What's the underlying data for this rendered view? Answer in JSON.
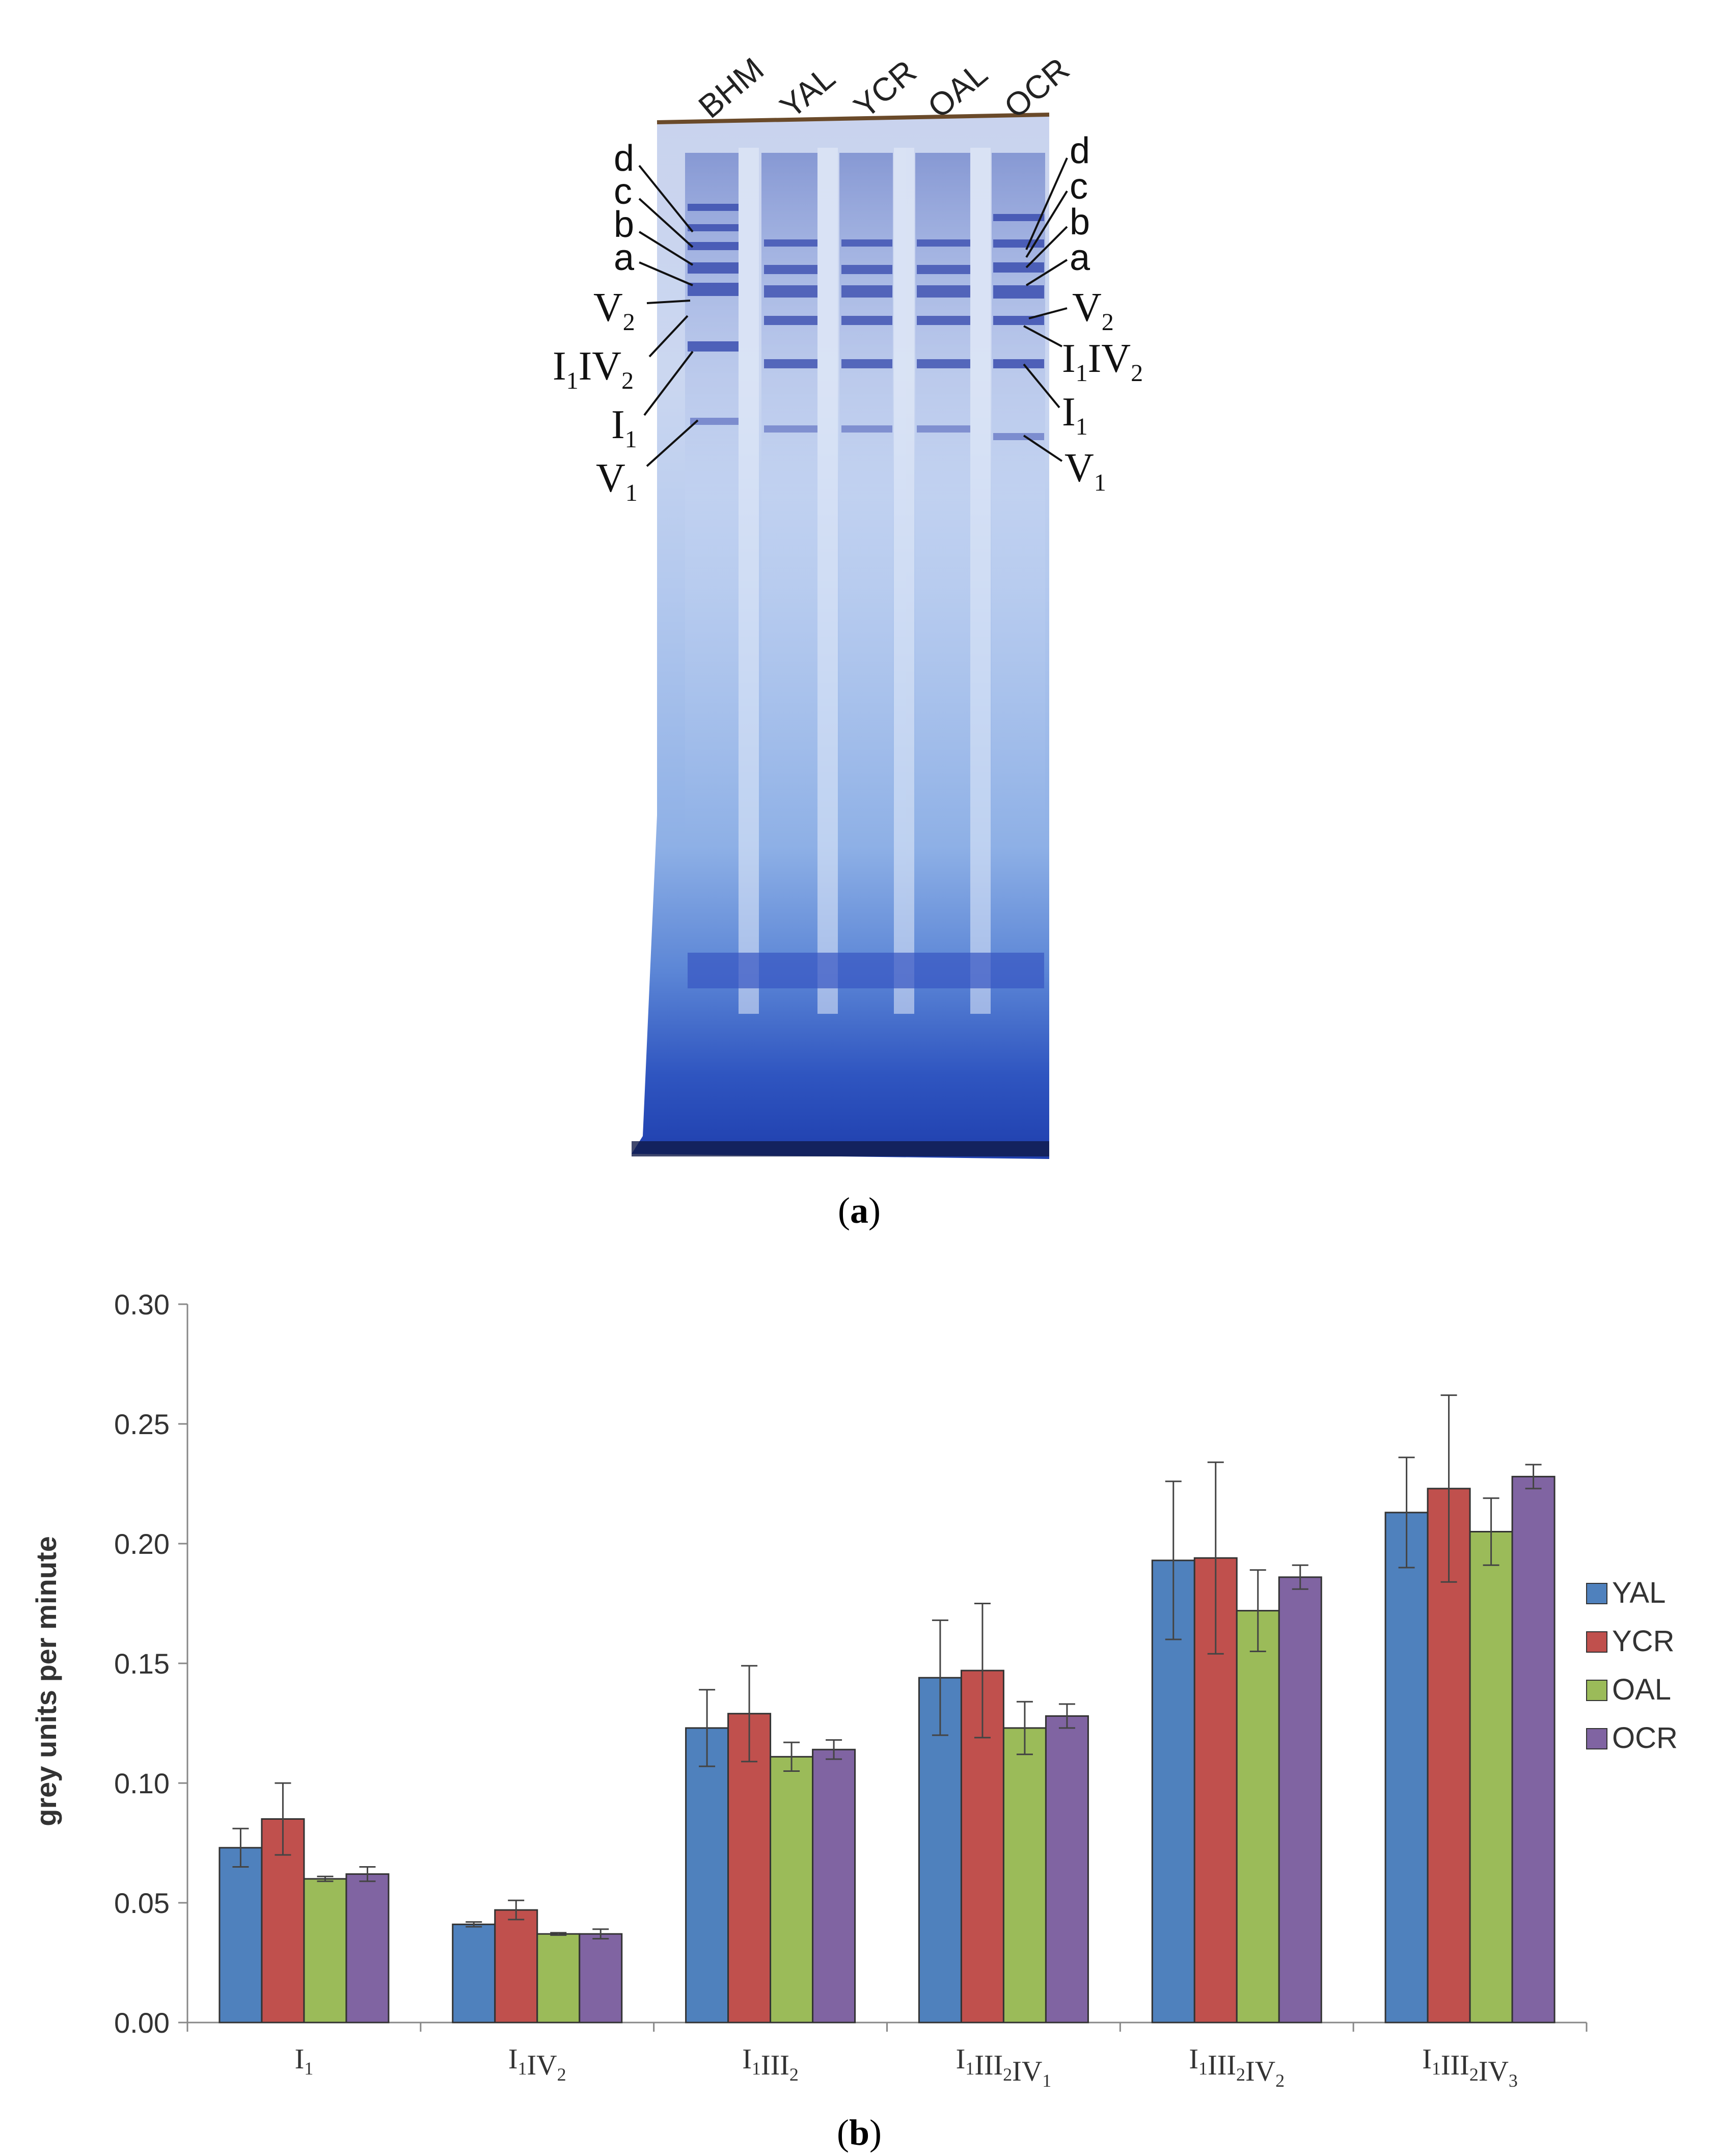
{
  "gel": {
    "lane_labels": [
      "BHM",
      "YAL",
      "YCR",
      "OAL",
      "OCR"
    ],
    "band_labels": [
      {
        "main": "d",
        "sub": ""
      },
      {
        "main": "c",
        "sub": ""
      },
      {
        "main": "b",
        "sub": ""
      },
      {
        "main": "a",
        "sub": ""
      },
      {
        "main": "V",
        "sub": "2"
      },
      {
        "main": "I",
        "sub": "1",
        "main2": "IV",
        "sub2": "2"
      },
      {
        "main": "I",
        "sub": "1"
      },
      {
        "main": "V",
        "sub": "1"
      }
    ]
  },
  "panel_a": {
    "open": "(",
    "letter": "a",
    "close": ")"
  },
  "panel_b": {
    "open": "(",
    "letter": "b",
    "close": ")"
  },
  "colors": {
    "YAL": "#4f81bd",
    "YCR": "#c0504d",
    "OAL": "#9bbb59",
    "OCR": "#8064a2"
  },
  "chart_data": {
    "type": "bar",
    "ylabel": "grey units per minute",
    "ylim": [
      0,
      0.3
    ],
    "yticks": [
      "0.00",
      "0.05",
      "0.10",
      "0.15",
      "0.20",
      "0.25",
      "0.30"
    ],
    "categories": [
      [
        {
          "t": "I",
          "s": "1"
        }
      ],
      [
        {
          "t": "I",
          "s": "1"
        },
        {
          "t": "IV",
          "s": "2"
        }
      ],
      [
        {
          "t": "I",
          "s": "1"
        },
        {
          "t": "III",
          "s": "2"
        }
      ],
      [
        {
          "t": "I",
          "s": "1"
        },
        {
          "t": "III",
          "s": "2"
        },
        {
          "t": "IV",
          "s": "1"
        }
      ],
      [
        {
          "t": "I",
          "s": "1"
        },
        {
          "t": "III",
          "s": "2"
        },
        {
          "t": "IV",
          "s": "2"
        }
      ],
      [
        {
          "t": "I",
          "s": "1"
        },
        {
          "t": "III",
          "s": "2"
        },
        {
          "t": "IV",
          "s": "3"
        }
      ]
    ],
    "series": [
      {
        "name": "YAL",
        "values": [
          0.073,
          0.041,
          0.123,
          0.144,
          0.193,
          0.213
        ],
        "errors": [
          0.008,
          0.001,
          0.016,
          0.024,
          0.033,
          0.023
        ]
      },
      {
        "name": "YCR",
        "values": [
          0.085,
          0.047,
          0.129,
          0.147,
          0.194,
          0.223
        ],
        "errors": [
          0.015,
          0.004,
          0.02,
          0.028,
          0.04,
          0.039
        ]
      },
      {
        "name": "OAL",
        "values": [
          0.06,
          0.037,
          0.111,
          0.123,
          0.172,
          0.205
        ],
        "errors": [
          0.001,
          0.0005,
          0.006,
          0.011,
          0.017,
          0.014
        ]
      },
      {
        "name": "OCR",
        "values": [
          0.062,
          0.037,
          0.114,
          0.128,
          0.186,
          0.228
        ],
        "errors": [
          0.003,
          0.002,
          0.004,
          0.005,
          0.005,
          0.005
        ]
      }
    ],
    "legend": "right"
  }
}
